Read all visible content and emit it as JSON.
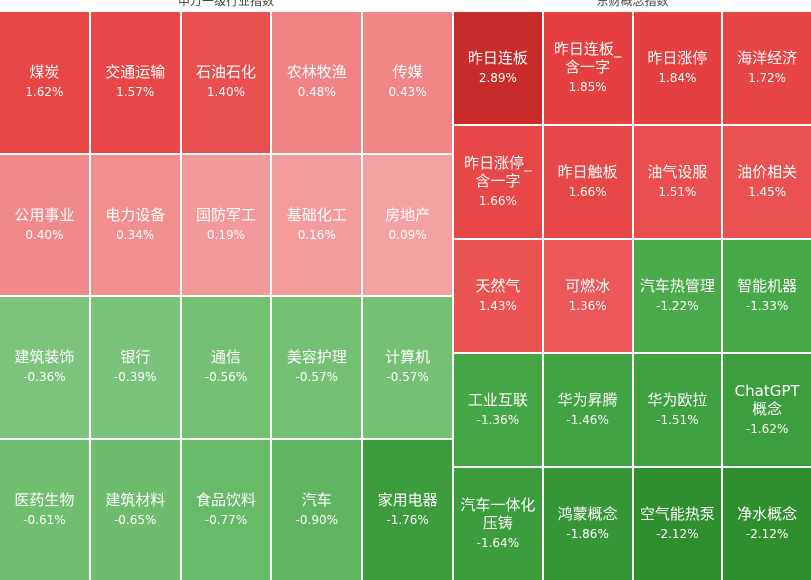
{
  "panels": [
    {
      "title": "申万一级行业指数",
      "columns": 5,
      "cells": [
        {
          "name": "煤炭",
          "value": "1.62%",
          "color": "#e84545"
        },
        {
          "name": "交通运输",
          "value": "1.57%",
          "color": "#e94747"
        },
        {
          "name": "石油石化",
          "value": "1.40%",
          "color": "#ea4f4f"
        },
        {
          "name": "农林牧渔",
          "value": "0.48%",
          "color": "#f08484"
        },
        {
          "name": "传媒",
          "value": "0.43%",
          "color": "#f08686"
        },
        {
          "name": "公用事业",
          "value": "0.40%",
          "color": "#f08989"
        },
        {
          "name": "电力设备",
          "value": "0.34%",
          "color": "#f18e8e"
        },
        {
          "name": "国防军工",
          "value": "0.19%",
          "color": "#f29999"
        },
        {
          "name": "基础化工",
          "value": "0.16%",
          "color": "#f29c9c"
        },
        {
          "name": "房地产",
          "value": "0.09%",
          "color": "#f3a1a1"
        },
        {
          "name": "建筑装饰",
          "value": "-0.36%",
          "color": "#7cc47c"
        },
        {
          "name": "银行",
          "value": "-0.39%",
          "color": "#7ac37a"
        },
        {
          "name": "通信",
          "value": "-0.56%",
          "color": "#74c174"
        },
        {
          "name": "美容护理",
          "value": "-0.57%",
          "color": "#74c174"
        },
        {
          "name": "计算机",
          "value": "-0.57%",
          "color": "#74c174"
        },
        {
          "name": "医药生物",
          "value": "-0.61%",
          "color": "#6fbf6f"
        },
        {
          "name": "建筑材料",
          "value": "-0.65%",
          "color": "#6dbd6d"
        },
        {
          "name": "食品饮料",
          "value": "-0.77%",
          "color": "#67ba67"
        },
        {
          "name": "汽车",
          "value": "-0.90%",
          "color": "#60b660"
        },
        {
          "name": "家用电器",
          "value": "-1.76%",
          "color": "#3d9d3d"
        }
      ]
    },
    {
      "title": "东财概念指数",
      "columns": 4,
      "cells": [
        {
          "name": "昨日连板",
          "value": "2.89%",
          "color": "#c92a2a"
        },
        {
          "name": "昨日连板_含一字",
          "value": "1.85%",
          "color": "#e53f3f"
        },
        {
          "name": "昨日涨停",
          "value": "1.84%",
          "color": "#e54040"
        },
        {
          "name": "海洋经济",
          "value": "1.72%",
          "color": "#e74444"
        },
        {
          "name": "昨日涨停_含一字",
          "value": "1.66%",
          "color": "#e84747"
        },
        {
          "name": "昨日触板",
          "value": "1.66%",
          "color": "#e84747"
        },
        {
          "name": "油气设服",
          "value": "1.51%",
          "color": "#ea4e4e"
        },
        {
          "name": "油价相关",
          "value": "1.45%",
          "color": "#eb5151"
        },
        {
          "name": "天然气",
          "value": "1.43%",
          "color": "#eb5353"
        },
        {
          "name": "可燃冰",
          "value": "1.36%",
          "color": "#ec5757"
        },
        {
          "name": "汽车热管理",
          "value": "-1.22%",
          "color": "#4bab4b"
        },
        {
          "name": "智能机器",
          "value": "-1.33%",
          "color": "#47a847"
        },
        {
          "name": "工业互联",
          "value": "-1.36%",
          "color": "#45a645"
        },
        {
          "name": "华为昇腾",
          "value": "-1.46%",
          "color": "#42a342"
        },
        {
          "name": "华为欧拉",
          "value": "-1.51%",
          "color": "#40a140"
        },
        {
          "name": "ChatGPT概念",
          "value": "-1.62%",
          "color": "#3d9e3d"
        },
        {
          "name": "汽车一体化压铸",
          "value": "-1.64%",
          "color": "#3c9d3c"
        },
        {
          "name": "鸿蒙概念",
          "value": "-1.86%",
          "color": "#379737"
        },
        {
          "name": "空气能热泵",
          "value": "-2.12%",
          "color": "#2f8f2f"
        },
        {
          "name": "净水概念",
          "value": "-2.12%",
          "color": "#2f8f2f"
        }
      ]
    }
  ]
}
